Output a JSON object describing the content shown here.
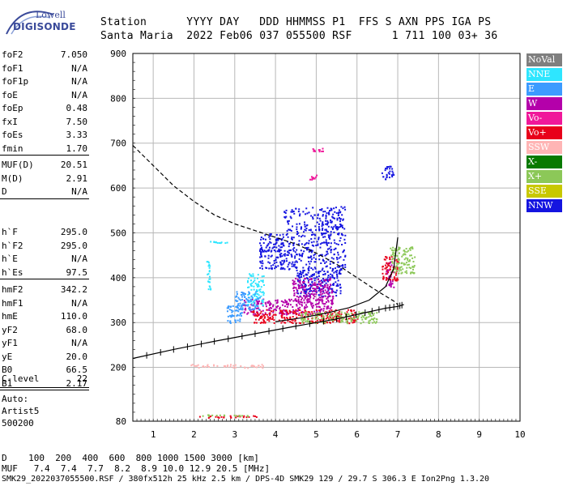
{
  "brand": {
    "company": "Lowell",
    "product": "DIGISONDE"
  },
  "header": {
    "line1": "Station      YYYY DAY   DDD HHMMSS P1  FFS S AXN PPS IGA PS",
    "line2": "Santa Maria  2022 Feb06 037 055500 RSF      1 711 100 03+ 36"
  },
  "params_group1": [
    {
      "key": "foF2",
      "value": "7.050"
    },
    {
      "key": "foF1",
      "value": "N/A"
    },
    {
      "key": "foF1p",
      "value": "N/A"
    },
    {
      "key": "foE",
      "value": "N/A"
    },
    {
      "key": "foEp",
      "value": "0.48"
    },
    {
      "key": "fxI",
      "value": "7.50"
    },
    {
      "key": "foEs",
      "value": "3.33"
    },
    {
      "key": "fmin",
      "value": "1.70"
    }
  ],
  "params_group2": [
    {
      "key": "MUF(D)",
      "value": "20.51"
    },
    {
      "key": "M(D)",
      "value": "2.91"
    },
    {
      "key": "D",
      "value": "N/A"
    }
  ],
  "params_group3": [
    {
      "key": "h`F",
      "value": "295.0"
    },
    {
      "key": "h`F2",
      "value": "295.0"
    },
    {
      "key": "h`E",
      "value": "N/A"
    },
    {
      "key": "h`Es",
      "value": "97.5"
    }
  ],
  "params_group4": [
    {
      "key": "hmF2",
      "value": "342.2"
    },
    {
      "key": "hmF1",
      "value": "N/A"
    },
    {
      "key": "hmE",
      "value": "110.0"
    },
    {
      "key": "yF2",
      "value": "68.0"
    },
    {
      "key": "yF1",
      "value": "N/A"
    },
    {
      "key": "yE",
      "value": "20.0"
    },
    {
      "key": "B0",
      "value": "66.5"
    },
    {
      "key": "B1",
      "value": "2.17"
    }
  ],
  "params_group5": [
    {
      "key": "C-level",
      "value": "22"
    }
  ],
  "autoscaling": [
    "Auto:",
    "Artist5",
    "500200"
  ],
  "legend": [
    {
      "label": "NoVal",
      "color": "#7f7f7f"
    },
    {
      "label": "NNE",
      "color": "#2ee6ff"
    },
    {
      "label": "E",
      "color": "#3c9bff"
    },
    {
      "label": "W",
      "color": "#b400aa"
    },
    {
      "label": "Vo-",
      "color": "#f0189a"
    },
    {
      "label": "Vo+",
      "color": "#e8001a"
    },
    {
      "label": "SSW",
      "color": "#ffb5b5"
    },
    {
      "label": "X-",
      "color": "#087a00"
    },
    {
      "label": "X+",
      "color": "#8cc858"
    },
    {
      "label": "SSE",
      "color": "#c8c800"
    },
    {
      "label": "NNW",
      "color": "#1414e0"
    }
  ],
  "muf_table": {
    "row_d": "D    100  200  400  600  800 1000 1500 3000 [km]",
    "row_muf": "MUF   7.4  7.4  7.7  8.2  8.9 10.0 12.9 20.5 [MHz]"
  },
  "footer": "SMK29_2022037055500.RSF / 380fx512h 25 kHz 2.5 km / DPS-4D SMK29 129 / 29.7 S 306.3 E Ion2Png 1.3.20",
  "chart_data": {
    "type": "scatter",
    "xlim": [
      0.5,
      10
    ],
    "ylim": [
      80,
      900
    ],
    "x_ticks": [
      1,
      2,
      3,
      4,
      5,
      6,
      7,
      8,
      9,
      10
    ],
    "y_ticks": [
      80,
      200,
      300,
      400,
      500,
      600,
      700,
      800,
      900
    ],
    "grid": true,
    "series": [
      {
        "name": "NNW",
        "color": "#1414e0",
        "clusters": [
          {
            "x": [
              4.2,
              5.7
            ],
            "y": [
              420,
              560
            ]
          },
          {
            "x": [
              3.6,
              4.2
            ],
            "y": [
              420,
              500
            ]
          },
          {
            "x": [
              4.5,
              5.6
            ],
            "y": [
              360,
              420
            ]
          },
          {
            "x": [
              6.6,
              6.9
            ],
            "y": [
              620,
              650
            ]
          }
        ]
      },
      {
        "name": "W",
        "color": "#b400aa",
        "clusters": [
          {
            "x": [
              3.2,
              5.4
            ],
            "y": [
              318,
              355
            ]
          },
          {
            "x": [
              4.4,
              5.4
            ],
            "y": [
              350,
              400
            ]
          },
          {
            "x": [
              6.7,
              6.9
            ],
            "y": [
              380,
              440
            ]
          }
        ]
      },
      {
        "name": "Vo+",
        "color": "#e8001a",
        "clusters": [
          {
            "x": [
              3.4,
              6.0
            ],
            "y": [
              300,
              330
            ]
          },
          {
            "x": [
              1.9,
              3.6
            ],
            "y": [
              89,
              94
            ]
          },
          {
            "x": [
              6.6,
              7.0
            ],
            "y": [
              395,
              450
            ]
          }
        ]
      },
      {
        "name": "X+",
        "color": "#8cc858",
        "clusters": [
          {
            "x": [
              4.6,
              6.5
            ],
            "y": [
              300,
              325
            ]
          },
          {
            "x": [
              6.8,
              7.4
            ],
            "y": [
              410,
              470
            ]
          },
          {
            "x": [
              2.2,
              3.6
            ],
            "y": [
              92,
              96
            ]
          }
        ]
      },
      {
        "name": "NNE",
        "color": "#2ee6ff",
        "clusters": [
          {
            "x": [
              2.3,
              2.4
            ],
            "y": [
              370,
              440
            ]
          },
          {
            "x": [
              3.3,
              3.7
            ],
            "y": [
              340,
              410
            ]
          },
          {
            "x": [
              2.3,
              2.8
            ],
            "y": [
              478,
              482
            ]
          }
        ]
      },
      {
        "name": "E",
        "color": "#3c9bff",
        "clusters": [
          {
            "x": [
              3.0,
              3.6
            ],
            "y": [
              330,
              370
            ]
          },
          {
            "x": [
              2.8,
              3.2
            ],
            "y": [
              300,
              340
            ]
          }
        ]
      },
      {
        "name": "SSW",
        "color": "#ffb5b5",
        "clusters": [
          {
            "x": [
              1.9,
              3.7
            ],
            "y": [
              200,
              208
            ]
          }
        ]
      },
      {
        "name": "Vo-",
        "color": "#f0189a",
        "clusters": [
          {
            "x": [
              4.9,
              5.2
            ],
            "y": [
              680,
              690
            ]
          },
          {
            "x": [
              4.8,
              5.0
            ],
            "y": [
              620,
              630
            ]
          }
        ]
      }
    ],
    "true_height_profile": [
      [
        0.5,
        220
      ],
      [
        1.5,
        240
      ],
      [
        2.5,
        258
      ],
      [
        3.5,
        275
      ],
      [
        4.5,
        292
      ],
      [
        5.5,
        308
      ],
      [
        6.2,
        322
      ],
      [
        6.7,
        332
      ],
      [
        7.0,
        336
      ],
      [
        7.15,
        340
      ]
    ],
    "virtual_height_curve": [
      [
        4.0,
        302
      ],
      [
        4.6,
        310
      ],
      [
        5.2,
        320
      ],
      [
        5.8,
        333
      ],
      [
        6.3,
        350
      ],
      [
        6.7,
        380
      ],
      [
        6.9,
        420
      ],
      [
        7.0,
        490
      ]
    ],
    "model_dashed": [
      [
        0.5,
        695
      ],
      [
        1.0,
        650
      ],
      [
        1.5,
        605
      ],
      [
        2.0,
        570
      ],
      [
        2.5,
        540
      ],
      [
        3.0,
        520
      ],
      [
        3.5,
        505
      ],
      [
        4.0,
        490
      ],
      [
        4.5,
        475
      ],
      [
        5.0,
        455
      ],
      [
        5.5,
        430
      ],
      [
        6.0,
        400
      ],
      [
        6.5,
        370
      ],
      [
        6.9,
        348
      ],
      [
        7.0,
        340
      ]
    ]
  }
}
